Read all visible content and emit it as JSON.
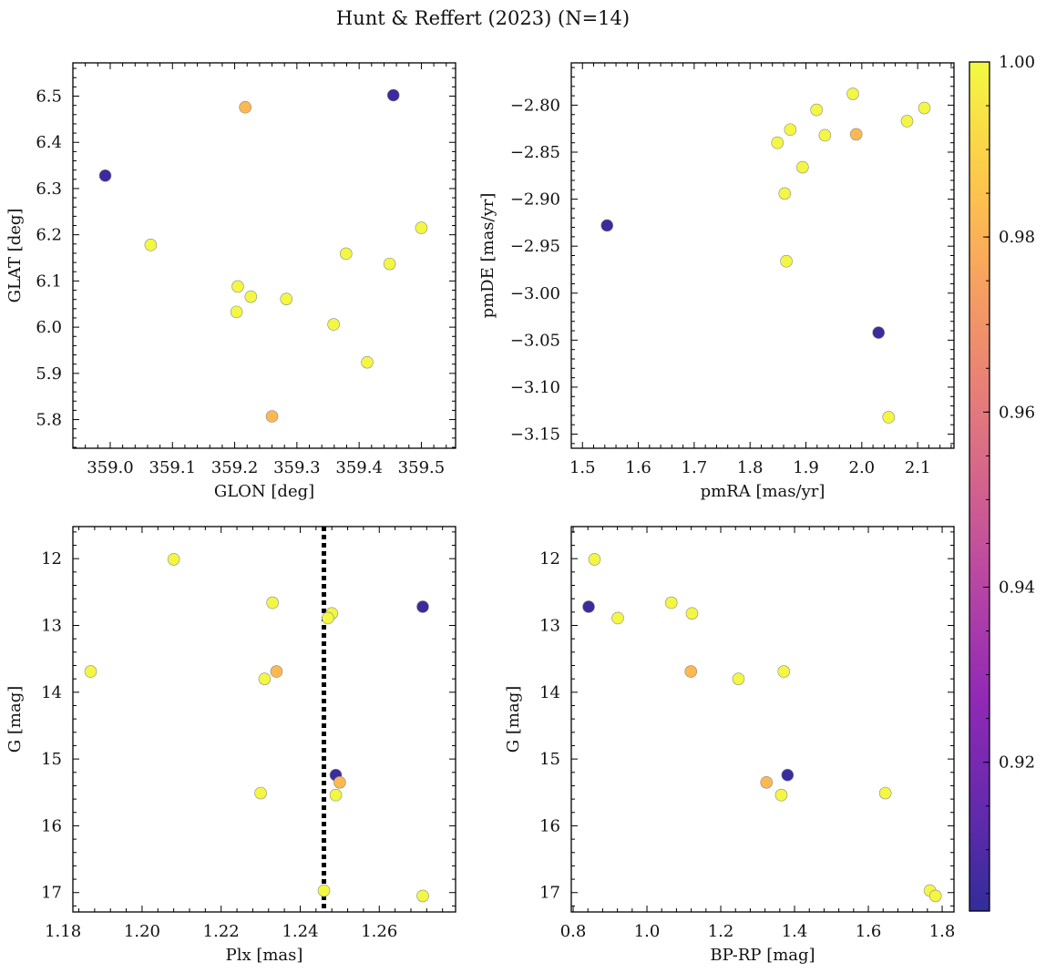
{
  "figure": {
    "title": "Hunt & Reffert (2023) (N=14)"
  },
  "colorbar": {
    "min": 0.903,
    "max": 1.0,
    "ticks": [
      0.92,
      0.94,
      0.96,
      0.98,
      1.0
    ],
    "tick_labels": [
      "0.92",
      "0.94",
      "0.96",
      "0.98",
      "1.00"
    ],
    "colormap": "plasma",
    "alpha": 0.85
  },
  "chart_data": [
    {
      "type": "scatter",
      "id": "glon-glat",
      "xlabel": "GLON [deg]",
      "ylabel": "GLAT [deg]",
      "xlim": [
        358.94,
        359.555
      ],
      "ylim": [
        5.738,
        6.572
      ],
      "y_inverted": false,
      "xticks": [
        359.0,
        359.1,
        359.2,
        359.3,
        359.4,
        359.5
      ],
      "xtick_labels": [
        "359.0",
        "359.1",
        "359.2",
        "359.3",
        "359.4",
        "359.5"
      ],
      "yticks": [
        5.8,
        5.9,
        6.0,
        6.1,
        6.2,
        6.3,
        6.4,
        6.5
      ],
      "ytick_labels": [
        "5.8",
        "5.9",
        "6.0",
        "6.1",
        "6.2",
        "6.3",
        "6.4",
        "6.5"
      ],
      "points": [
        {
          "x": 358.992,
          "y": 6.328,
          "c": 0.905
        },
        {
          "x": 359.455,
          "y": 6.502,
          "c": 0.905
        },
        {
          "x": 359.217,
          "y": 6.476,
          "c": 0.982
        },
        {
          "x": 359.26,
          "y": 5.807,
          "c": 0.982
        },
        {
          "x": 359.065,
          "y": 6.178,
          "c": 0.999
        },
        {
          "x": 359.5,
          "y": 6.215,
          "c": 0.999
        },
        {
          "x": 359.379,
          "y": 6.159,
          "c": 0.999
        },
        {
          "x": 359.449,
          "y": 6.137,
          "c": 0.999
        },
        {
          "x": 359.205,
          "y": 6.088,
          "c": 0.999
        },
        {
          "x": 359.226,
          "y": 6.066,
          "c": 0.999
        },
        {
          "x": 359.283,
          "y": 6.061,
          "c": 0.999
        },
        {
          "x": 359.203,
          "y": 6.033,
          "c": 0.999
        },
        {
          "x": 359.359,
          "y": 6.006,
          "c": 0.999
        },
        {
          "x": 359.413,
          "y": 5.924,
          "c": 0.999
        }
      ]
    },
    {
      "type": "scatter",
      "id": "pmra-pmde",
      "xlabel": "pmRA [mas/yr]",
      "ylabel": "pmDE [mas/yr]",
      "xlim": [
        1.48,
        2.165
      ],
      "ylim": [
        -3.165,
        -2.755
      ],
      "y_inverted": false,
      "xticks": [
        1.5,
        1.6,
        1.7,
        1.8,
        1.9,
        2.0,
        2.1
      ],
      "xtick_labels": [
        "1.5",
        "1.6",
        "1.7",
        "1.8",
        "1.9",
        "2.0",
        "2.1"
      ],
      "yticks": [
        -3.15,
        -3.1,
        -3.05,
        -3.0,
        -2.95,
        -2.9,
        -2.85,
        -2.8
      ],
      "ytick_labels": [
        "−3.15",
        "−3.10",
        "−3.05",
        "−3.00",
        "−2.95",
        "−2.90",
        "−2.85",
        "−2.80"
      ],
      "points": [
        {
          "x": 1.544,
          "y": -2.928,
          "c": 0.905
        },
        {
          "x": 2.03,
          "y": -3.042,
          "c": 0.905
        },
        {
          "x": 1.99,
          "y": -2.831,
          "c": 0.982
        },
        {
          "x": 1.984,
          "y": -2.788,
          "c": 0.999
        },
        {
          "x": 2.112,
          "y": -2.803,
          "c": 0.999
        },
        {
          "x": 1.919,
          "y": -2.805,
          "c": 0.999
        },
        {
          "x": 2.081,
          "y": -2.817,
          "c": 0.999
        },
        {
          "x": 1.872,
          "y": -2.826,
          "c": 0.999
        },
        {
          "x": 1.934,
          "y": -2.832,
          "c": 0.999
        },
        {
          "x": 1.849,
          "y": -2.84,
          "c": 0.999
        },
        {
          "x": 1.894,
          "y": -2.866,
          "c": 0.999
        },
        {
          "x": 1.862,
          "y": -2.894,
          "c": 0.999
        },
        {
          "x": 1.865,
          "y": -2.966,
          "c": 0.999
        },
        {
          "x": 2.048,
          "y": -3.132,
          "c": 0.999
        }
      ]
    },
    {
      "type": "scatter",
      "id": "plx-g",
      "xlabel": "Plx [mas]",
      "ylabel": "G [mag]",
      "xlim": [
        1.1825,
        1.2793
      ],
      "ylim": [
        17.29,
        11.52
      ],
      "y_inverted": true,
      "xticks": [
        1.18,
        1.2,
        1.22,
        1.24,
        1.26
      ],
      "xtick_labels": [
        "1.18",
        "1.20",
        "1.22",
        "1.24",
        "1.26"
      ],
      "yticks": [
        12,
        13,
        14,
        15,
        16,
        17
      ],
      "ytick_labels": [
        "12",
        "13",
        "14",
        "15",
        "16",
        "17"
      ],
      "vline": {
        "x": 1.246,
        "style": "dotted"
      },
      "points": [
        {
          "x": 1.271,
          "y": 12.72,
          "c": 0.905
        },
        {
          "x": 1.249,
          "y": 15.24,
          "c": 0.905
        },
        {
          "x": 1.234,
          "y": 13.69,
          "c": 0.982
        },
        {
          "x": 1.25,
          "y": 15.35,
          "c": 0.982
        },
        {
          "x": 1.208,
          "y": 12.01,
          "c": 0.999
        },
        {
          "x": 1.233,
          "y": 12.66,
          "c": 0.999
        },
        {
          "x": 1.248,
          "y": 12.82,
          "c": 0.999
        },
        {
          "x": 1.247,
          "y": 12.89,
          "c": 0.999
        },
        {
          "x": 1.187,
          "y": 13.69,
          "c": 0.999
        },
        {
          "x": 1.231,
          "y": 13.8,
          "c": 0.999
        },
        {
          "x": 1.23,
          "y": 15.51,
          "c": 0.999
        },
        {
          "x": 1.249,
          "y": 15.54,
          "c": 0.999
        },
        {
          "x": 1.246,
          "y": 16.97,
          "c": 0.999
        },
        {
          "x": 1.271,
          "y": 17.05,
          "c": 0.999
        }
      ]
    },
    {
      "type": "scatter",
      "id": "bprp-g",
      "xlabel": "BP-RP [mag]",
      "ylabel": "G [mag]",
      "xlim": [
        0.795,
        1.832
      ],
      "ylim": [
        17.29,
        11.52
      ],
      "y_inverted": true,
      "xticks": [
        0.8,
        1.0,
        1.2,
        1.4,
        1.6,
        1.8
      ],
      "xtick_labels": [
        "0.8",
        "1.0",
        "1.2",
        "1.4",
        "1.6",
        "1.8"
      ],
      "yticks": [
        12,
        13,
        14,
        15,
        16,
        17
      ],
      "ytick_labels": [
        "12",
        "13",
        "14",
        "15",
        "16",
        "17"
      ],
      "points": [
        {
          "x": 0.842,
          "y": 12.72,
          "c": 0.905
        },
        {
          "x": 1.381,
          "y": 15.24,
          "c": 0.905
        },
        {
          "x": 1.119,
          "y": 13.69,
          "c": 0.982
        },
        {
          "x": 1.324,
          "y": 15.35,
          "c": 0.982
        },
        {
          "x": 0.858,
          "y": 12.01,
          "c": 0.999
        },
        {
          "x": 1.066,
          "y": 12.66,
          "c": 0.999
        },
        {
          "x": 1.122,
          "y": 12.82,
          "c": 0.999
        },
        {
          "x": 0.921,
          "y": 12.89,
          "c": 0.999
        },
        {
          "x": 1.371,
          "y": 13.69,
          "c": 0.999
        },
        {
          "x": 1.248,
          "y": 13.8,
          "c": 0.999
        },
        {
          "x": 1.646,
          "y": 15.51,
          "c": 0.999
        },
        {
          "x": 1.364,
          "y": 15.54,
          "c": 0.999
        },
        {
          "x": 1.767,
          "y": 16.97,
          "c": 0.999
        },
        {
          "x": 1.782,
          "y": 17.05,
          "c": 0.999
        }
      ]
    }
  ]
}
